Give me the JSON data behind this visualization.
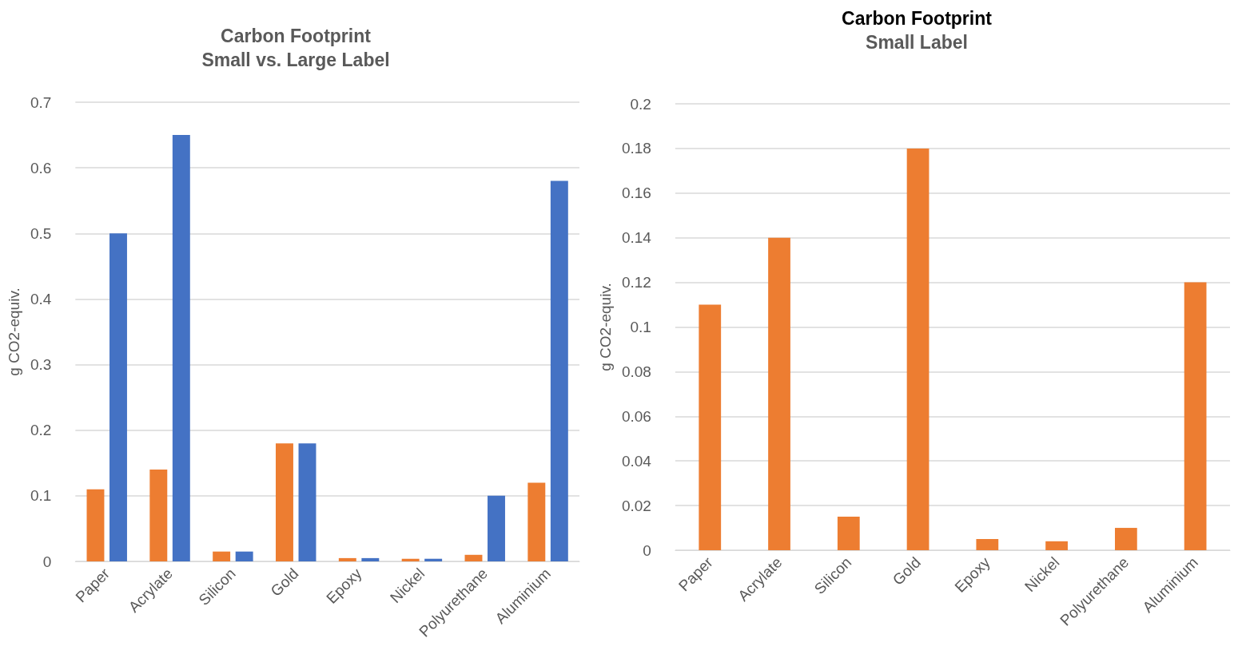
{
  "chart_data": [
    {
      "type": "bar",
      "title": "Carbon Footprint",
      "subtitle": "Small vs. Large Label",
      "ylabel": "g CO2-equiv.",
      "categories": [
        "Paper",
        "Acrylate",
        "Silicon",
        "Gold",
        "Epoxy",
        "Nickel",
        "Polyurethane",
        "Aluminium"
      ],
      "series": [
        {
          "color": "#ed7d31",
          "values": [
            0.11,
            0.14,
            0.015,
            0.18,
            0.005,
            0.004,
            0.01,
            0.12
          ]
        },
        {
          "color": "#4472c4",
          "values": [
            0.5,
            0.65,
            0.015,
            0.18,
            0.005,
            0.004,
            0.1,
            0.58
          ]
        }
      ],
      "ylim": [
        0,
        0.7
      ],
      "yticks": [
        0,
        0.1,
        0.2,
        0.3,
        0.4,
        0.5,
        0.6,
        0.7
      ],
      "grid": "y"
    },
    {
      "type": "bar",
      "title": "Carbon Footprint",
      "subtitle": "Small Label",
      "ylabel": "g CO2-equiv.",
      "categories": [
        "Paper",
        "Acrylate",
        "Silicon",
        "Gold",
        "Epoxy",
        "Nickel",
        "Polyurethane",
        "Aluminium"
      ],
      "series": [
        {
          "color": "#ed7d31",
          "values": [
            0.11,
            0.14,
            0.015,
            0.18,
            0.005,
            0.004,
            0.01,
            0.12
          ]
        }
      ],
      "ylim": [
        0,
        0.2
      ],
      "yticks": [
        0,
        0.02,
        0.04,
        0.06,
        0.08,
        0.1,
        0.12,
        0.14,
        0.16,
        0.18,
        0.2
      ],
      "grid": "y"
    }
  ]
}
